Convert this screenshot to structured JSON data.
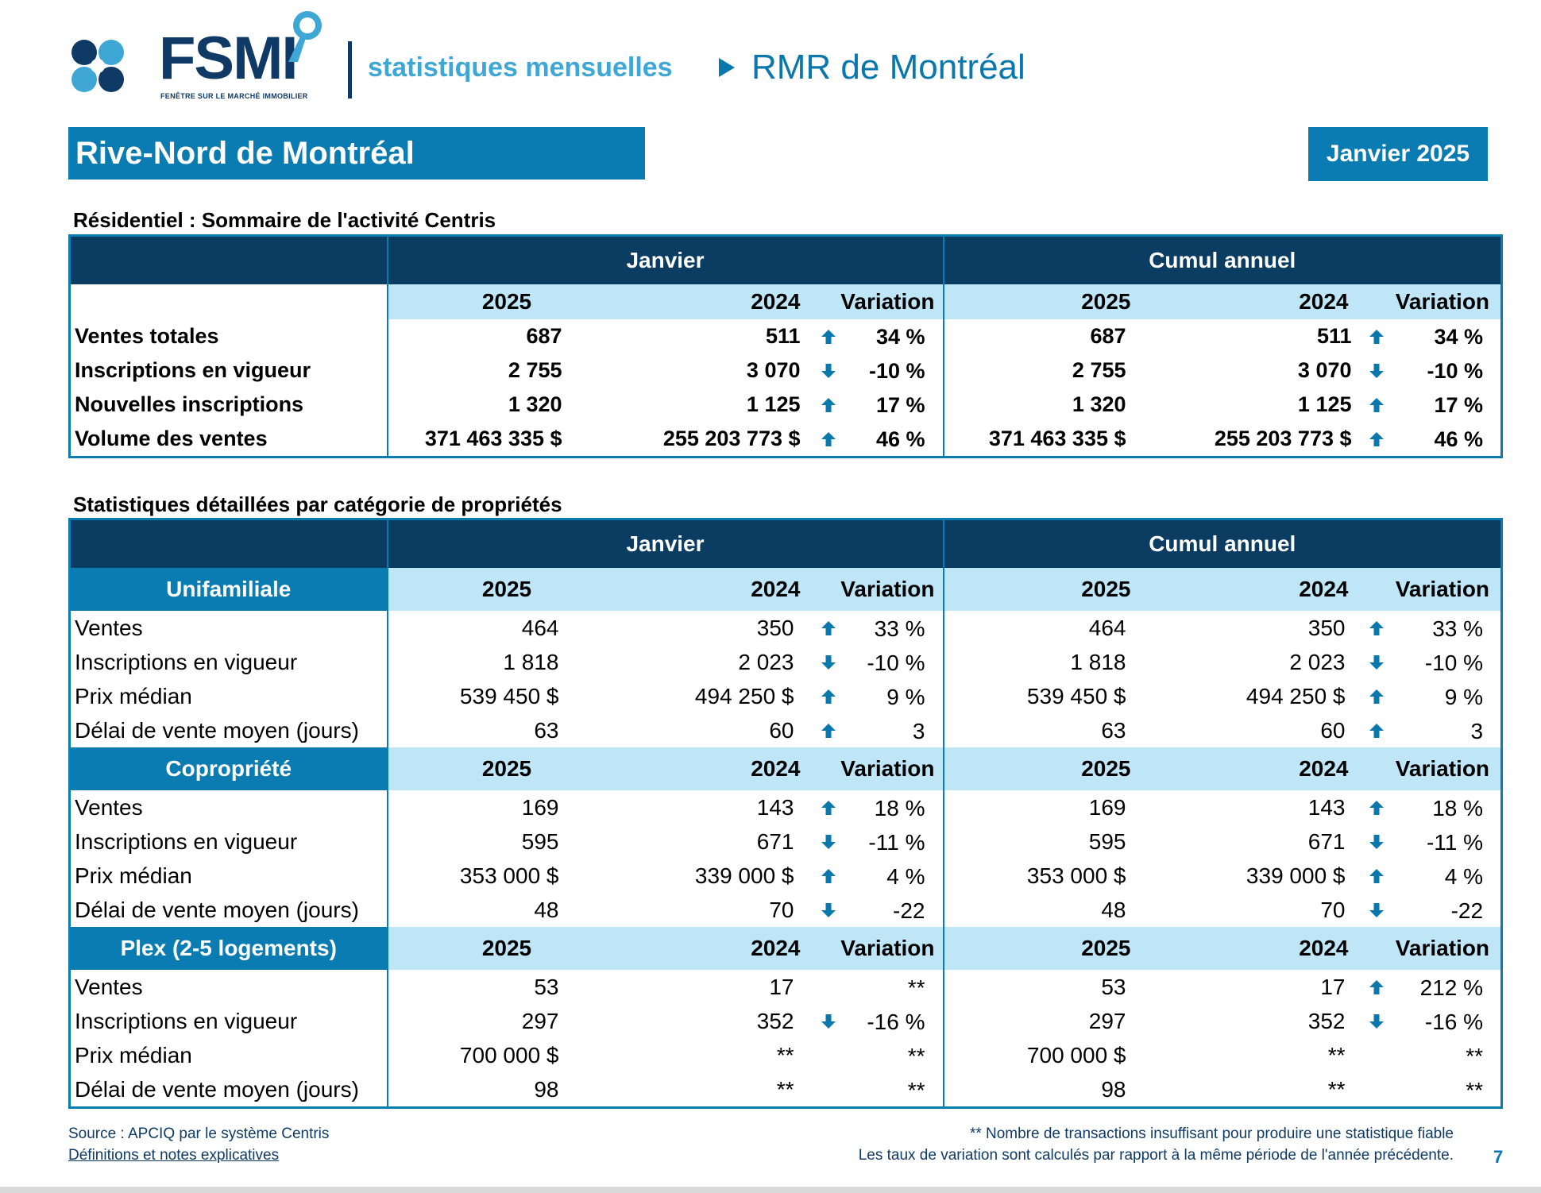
{
  "header": {
    "logo_text": "FSMI",
    "logo_subtitle": "FENÊTRE SUR LE MARCHÉ IMMOBILIER",
    "stats_label": "statistiques mensuelles",
    "rmr_label": "RMR de Montréal"
  },
  "region": "Rive-Nord de Montréal",
  "period": "Janvier 2025",
  "summary": {
    "title": "Résidentiel : Sommaire de l'activité Centris",
    "group_month": "Janvier",
    "group_ytd": "Cumul annuel",
    "col_2025": "2025",
    "col_2024": "2024",
    "col_var": "Variation",
    "rows": [
      {
        "label": "Ventes totales",
        "m25": "687",
        "m24": "511",
        "mdir": "up",
        "mvar": "34 %",
        "y25": "687",
        "y24": "511",
        "ydir": "up",
        "yvar": "34 %"
      },
      {
        "label": "Inscriptions en vigueur",
        "m25": "2 755",
        "m24": "3 070",
        "mdir": "down",
        "mvar": "-10 %",
        "y25": "2 755",
        "y24": "3 070",
        "ydir": "down",
        "yvar": "-10 %"
      },
      {
        "label": "Nouvelles inscriptions",
        "m25": "1 320",
        "m24": "1 125",
        "mdir": "up",
        "mvar": "17 %",
        "y25": "1 320",
        "y24": "1 125",
        "ydir": "up",
        "yvar": "17 %"
      },
      {
        "label": "Volume des ventes",
        "m25": "371 463 335  $",
        "m24": "255 203 773  $",
        "mdir": "up",
        "mvar": "46 %",
        "y25": "371 463 335  $",
        "y24": "255 203 773  $",
        "ydir": "up",
        "yvar": "46 %"
      }
    ]
  },
  "detail": {
    "title": "Statistiques détaillées par catégorie de propriétés",
    "group_month": "Janvier",
    "group_ytd": "Cumul annuel",
    "col_2025": "2025",
    "col_2024": "2024",
    "col_var": "Variation",
    "categories": [
      {
        "name": "Unifamiliale",
        "rows": [
          {
            "label": "Ventes",
            "m25": "464",
            "m24": "350",
            "mdir": "up",
            "mvar": "33 %",
            "y25": "464",
            "y24": "350",
            "ydir": "up",
            "yvar": "33 %"
          },
          {
            "label": "Inscriptions en vigueur",
            "m25": "1 818",
            "m24": "2 023",
            "mdir": "down",
            "mvar": "-10 %",
            "y25": "1 818",
            "y24": "2 023",
            "ydir": "down",
            "yvar": "-10 %"
          },
          {
            "label": "Prix médian",
            "m25": "539 450 $",
            "m24": "494 250 $",
            "mdir": "up",
            "mvar": "9 %",
            "y25": "539 450 $",
            "y24": "494 250 $",
            "ydir": "up",
            "yvar": "9 %"
          },
          {
            "label": "Délai de vente moyen (jours)",
            "m25": "63",
            "m24": "60",
            "mdir": "up",
            "mvar": "3",
            "y25": "63",
            "y24": "60",
            "ydir": "up",
            "yvar": "3"
          }
        ]
      },
      {
        "name": "Copropriété",
        "rows": [
          {
            "label": "Ventes",
            "m25": "169",
            "m24": "143",
            "mdir": "up",
            "mvar": "18 %",
            "y25": "169",
            "y24": "143",
            "ydir": "up",
            "yvar": "18 %"
          },
          {
            "label": "Inscriptions en vigueur",
            "m25": "595",
            "m24": "671",
            "mdir": "down",
            "mvar": "-11 %",
            "y25": "595",
            "y24": "671",
            "ydir": "down",
            "yvar": "-11 %"
          },
          {
            "label": "Prix médian",
            "m25": "353 000 $",
            "m24": "339 000 $",
            "mdir": "up",
            "mvar": "4 %",
            "y25": "353 000 $",
            "y24": "339 000 $",
            "ydir": "up",
            "yvar": "4 %"
          },
          {
            "label": "Délai de vente moyen (jours)",
            "m25": "48",
            "m24": "70",
            "mdir": "down",
            "mvar": "-22",
            "y25": "48",
            "y24": "70",
            "ydir": "down",
            "yvar": "-22"
          }
        ]
      },
      {
        "name": "Plex (2-5 logements)",
        "rows": [
          {
            "label": "Ventes",
            "m25": "53",
            "m24": "17",
            "mdir": "",
            "mvar": "**",
            "y25": "53",
            "y24": "17",
            "ydir": "up",
            "yvar": "212 %"
          },
          {
            "label": "Inscriptions en vigueur",
            "m25": "297",
            "m24": "352",
            "mdir": "down",
            "mvar": "-16 %",
            "y25": "297",
            "y24": "352",
            "ydir": "down",
            "yvar": "-16 %"
          },
          {
            "label": "Prix médian",
            "m25": "700 000 $",
            "m24": "**",
            "mdir": "",
            "mvar": "**",
            "y25": "700 000 $",
            "y24": "**",
            "ydir": "",
            "yvar": "**"
          },
          {
            "label": "Délai de vente moyen (jours)",
            "m25": "98",
            "m24": "**",
            "mdir": "",
            "mvar": "**",
            "y25": "98",
            "y24": "**",
            "ydir": "",
            "yvar": "**"
          }
        ]
      }
    ]
  },
  "footer": {
    "source": "Source : APCIQ par le système Centris",
    "definitions_link": "Définitions et notes explicatives",
    "note1": "** Nombre de transactions insuffisant pour produire une statistique fiable",
    "note2": "Les taux de variation sont calculés par rapport à la même période de l'année précédente.",
    "page_number": "7"
  },
  "colors": {
    "navy": "#0b3c62",
    "accent_blue": "#0a7cb1",
    "light_blue": "#bfe6f7",
    "arrow": "#0a77ad"
  },
  "icons": {
    "up": "arrow-up-icon",
    "down": "arrow-down-icon"
  }
}
